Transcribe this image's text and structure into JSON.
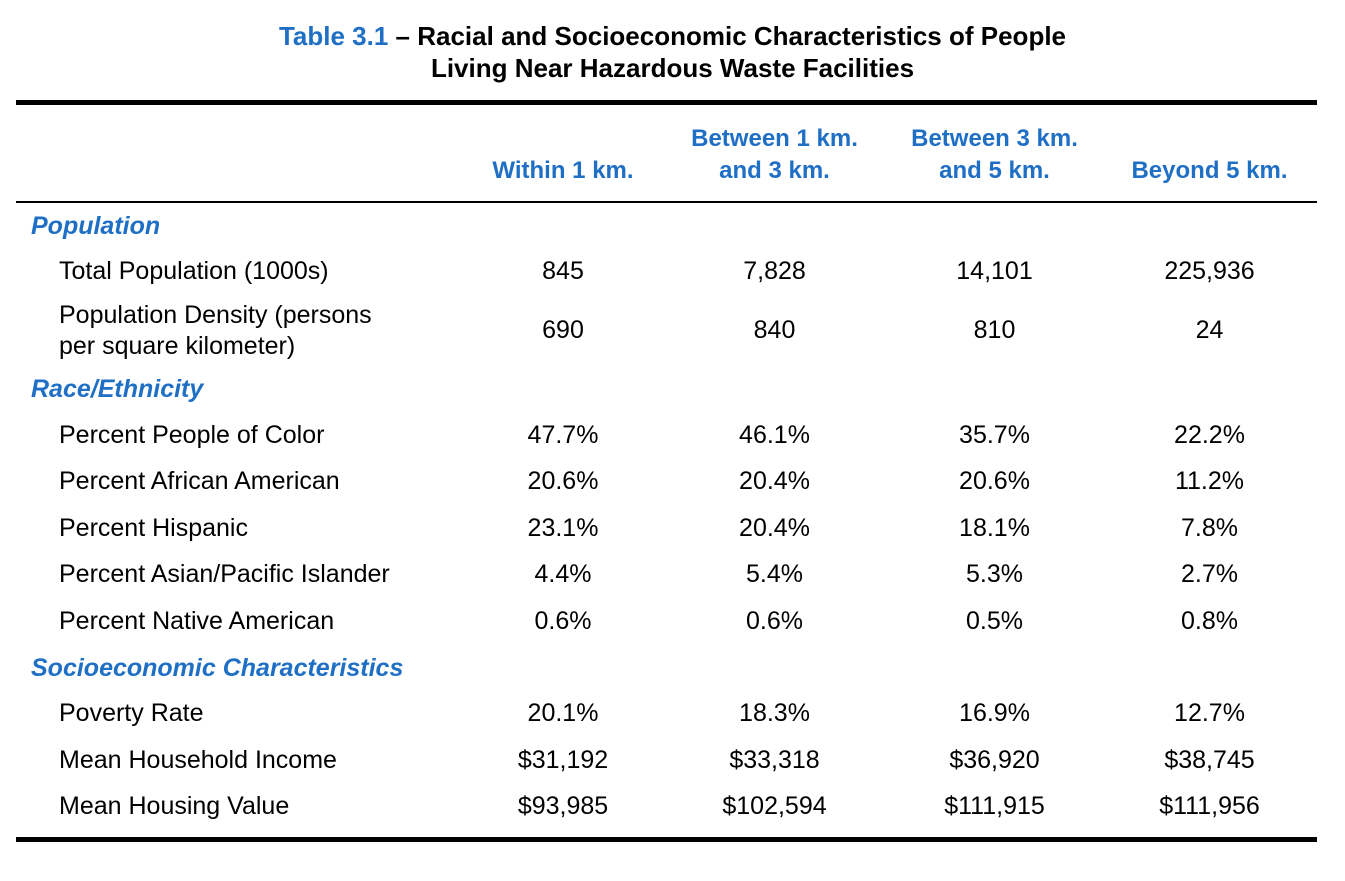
{
  "title": {
    "number": "Table 3.1",
    "line1_rest": " – Racial and Socioeconomic Characteristics of People",
    "line2": "Living Near Hazardous Waste Facilities"
  },
  "columns": [
    {
      "line1": "",
      "line2": "Within 1 km."
    },
    {
      "line1": "Between 1 km.",
      "line2": "and 3 km."
    },
    {
      "line1": "Between 3 km.",
      "line2": "and 5 km."
    },
    {
      "line1": "",
      "line2": "Beyond 5 km."
    }
  ],
  "sections": [
    {
      "heading": "Population",
      "rows": [
        {
          "label": "Total Population (1000s)",
          "values": [
            "845",
            "7,828",
            "14,101",
            "225,936"
          ]
        },
        {
          "label_line1": "Population Density (persons",
          "label_line2": "per square kilometer)",
          "values": [
            "690",
            "840",
            "810",
            "24"
          ]
        }
      ]
    },
    {
      "heading": "Race/Ethnicity",
      "rows": [
        {
          "label": "Percent People of Color",
          "values": [
            "47.7%",
            "46.1%",
            "35.7%",
            "22.2%"
          ]
        },
        {
          "label": "Percent African American",
          "values": [
            "20.6%",
            "20.4%",
            "20.6%",
            "11.2%"
          ]
        },
        {
          "label": "Percent Hispanic",
          "values": [
            "23.1%",
            "20.4%",
            "18.1%",
            "7.8%"
          ]
        },
        {
          "label": "Percent Asian/Pacific Islander",
          "values": [
            "4.4%",
            "5.4%",
            "5.3%",
            "2.7%"
          ]
        },
        {
          "label": "Percent Native American",
          "values": [
            "0.6%",
            "0.6%",
            "0.5%",
            "0.8%"
          ]
        }
      ]
    },
    {
      "heading": "Socioeconomic Characteristics",
      "rows": [
        {
          "label": "Poverty Rate",
          "values": [
            "20.1%",
            "18.3%",
            "16.9%",
            "12.7%"
          ]
        },
        {
          "label": "Mean Household Income",
          "values": [
            "$31,192",
            "$33,318",
            "$36,920",
            "$38,745"
          ]
        },
        {
          "label": "Mean Housing Value",
          "values": [
            "$93,985",
            "$102,594",
            "$111,915",
            "$111,956"
          ]
        }
      ]
    }
  ],
  "colors": {
    "accent": "#1f6fc5",
    "text": "#000000"
  }
}
